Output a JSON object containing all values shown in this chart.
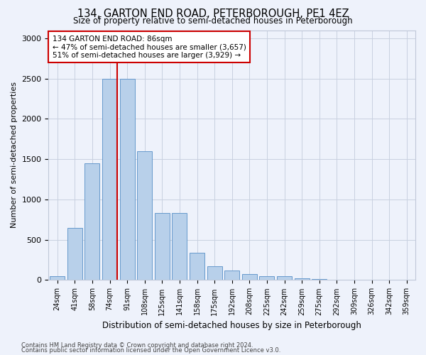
{
  "title": "134, GARTON END ROAD, PETERBOROUGH, PE1 4EZ",
  "subtitle": "Size of property relative to semi-detached houses in Peterborough",
  "xlabel": "Distribution of semi-detached houses by size in Peterborough",
  "ylabel": "Number of semi-detached properties",
  "categories": [
    "24sqm",
    "41sqm",
    "58sqm",
    "74sqm",
    "91sqm",
    "108sqm",
    "125sqm",
    "141sqm",
    "158sqm",
    "175sqm",
    "192sqm",
    "208sqm",
    "225sqm",
    "242sqm",
    "259sqm",
    "275sqm",
    "292sqm",
    "309sqm",
    "326sqm",
    "342sqm",
    "359sqm"
  ],
  "values": [
    50,
    650,
    1450,
    2500,
    2500,
    1600,
    830,
    830,
    340,
    170,
    120,
    70,
    50,
    45,
    20,
    10,
    5,
    5,
    3,
    2,
    2
  ],
  "bar_color": "#b8d0ea",
  "bar_edge_color": "#6699cc",
  "property_line_color": "#cc0000",
  "annotation_text": "134 GARTON END ROAD: 86sqm\n← 47% of semi-detached houses are smaller (3,657)\n51% of semi-detached houses are larger (3,929) →",
  "annotation_box_color": "#ffffff",
  "annotation_box_edge_color": "#cc0000",
  "footer_line1": "Contains HM Land Registry data © Crown copyright and database right 2024.",
  "footer_line2": "Contains public sector information licensed under the Open Government Licence v3.0.",
  "ylim": [
    0,
    3100
  ],
  "yticks": [
    0,
    500,
    1000,
    1500,
    2000,
    2500,
    3000
  ],
  "grid_color": "#c8d0e0",
  "bg_color": "#eef2fb"
}
